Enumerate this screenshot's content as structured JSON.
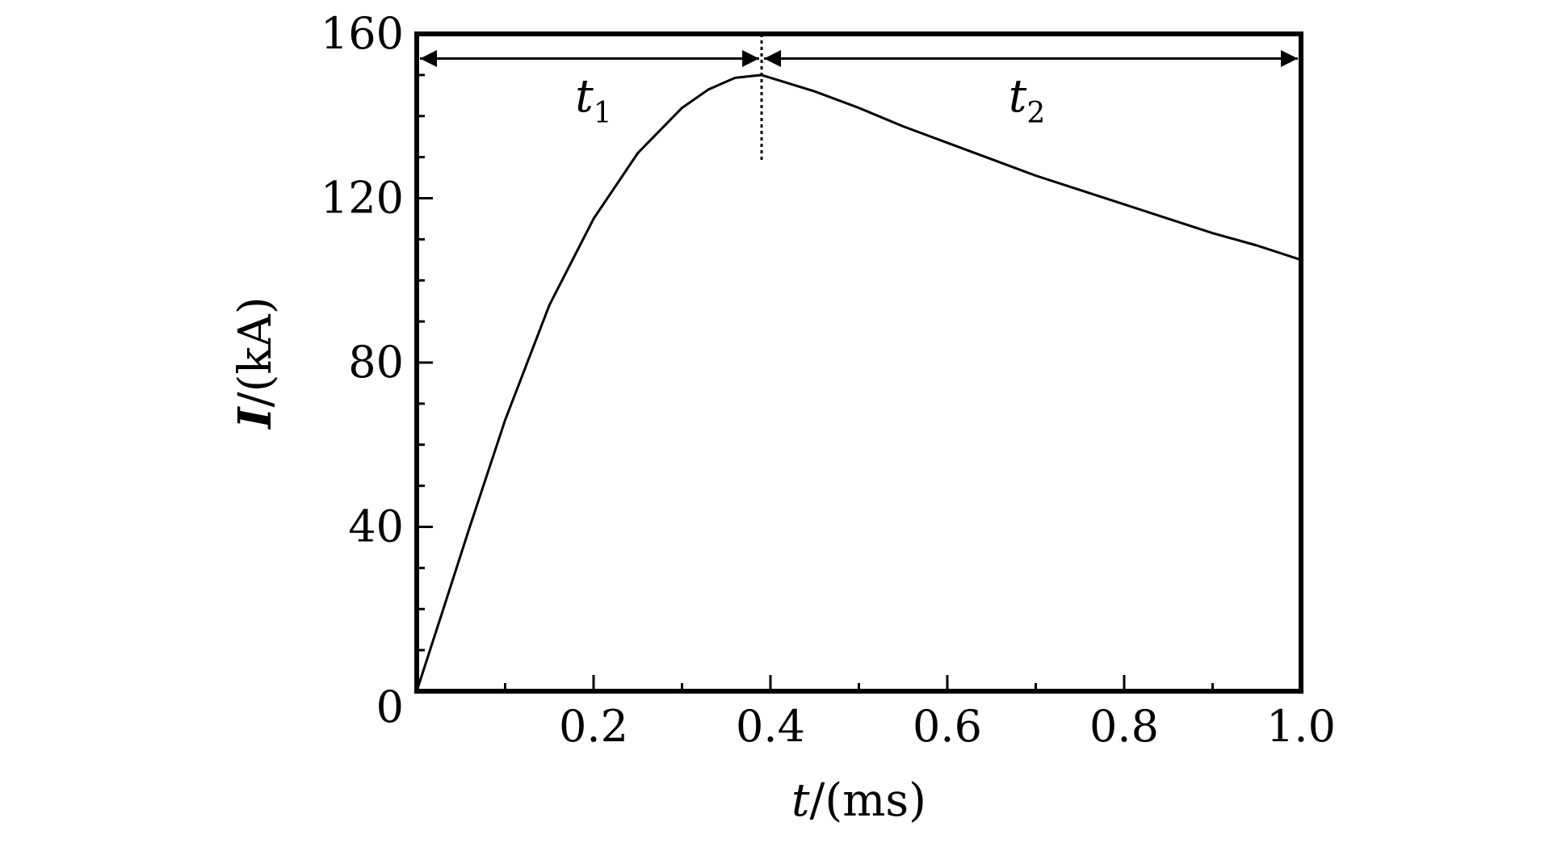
{
  "chart_data": {
    "type": "line",
    "title": "",
    "xlabel": {
      "var": "t",
      "unit": "/(ms)"
    },
    "ylabel": {
      "var": "I",
      "unit": "/(kA)"
    },
    "xlim": [
      0,
      1.0
    ],
    "ylim": [
      0,
      160
    ],
    "x_ticks": [
      0.2,
      0.4,
      0.6,
      0.8,
      1.0
    ],
    "x_tick_labels": [
      "0.2",
      "0.4",
      "0.6",
      "0.8",
      "1.0"
    ],
    "x_minor_ticks": [
      0.1,
      0.3,
      0.5,
      0.7,
      0.9
    ],
    "y_ticks": [
      0,
      40,
      80,
      120,
      160
    ],
    "y_tick_labels": [
      "0",
      "40",
      "80",
      "120",
      "160"
    ],
    "y_minor_step": 10,
    "grid": false,
    "series": [
      {
        "x": [
          0,
          0.03,
          0.06,
          0.1,
          0.15,
          0.2,
          0.25,
          0.3,
          0.33,
          0.36,
          0.39,
          0.45,
          0.5,
          0.55,
          0.6,
          0.65,
          0.7,
          0.75,
          0.8,
          0.85,
          0.9,
          0.95,
          1.0
        ],
        "y": [
          0,
          20,
          40,
          66,
          94,
          115,
          131,
          142,
          146.5,
          149.3,
          150,
          146,
          142,
          137.5,
          133.5,
          129.5,
          125.5,
          122,
          118.5,
          115,
          111.5,
          108.5,
          105
        ],
        "color": "#000000"
      }
    ],
    "annotations": {
      "peak_x": 0.39,
      "divider_y_range": [
        129,
        160
      ],
      "arrow_y": 154,
      "labels": [
        {
          "var": "t",
          "sub": "1",
          "x": 0.2,
          "y": 147
        },
        {
          "var": "t",
          "sub": "2",
          "x": 0.69,
          "y": 147
        }
      ]
    }
  }
}
